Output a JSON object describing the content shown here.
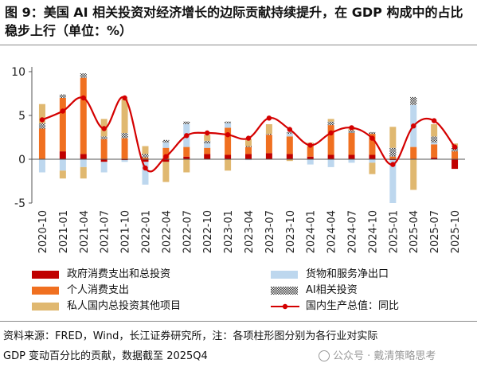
{
  "title": "图 9：美国 AI 相关投资对经济增长的边际贡献持续提升，在 GDP 构成中的占比稳步上行（单位：%）",
  "source_line1": "资料来源：FRED，Wind，长江证券研究所，注：各项柱形图分别为各行业对实际",
  "source_line2": "GDP 变动百分比的贡献，数据截至 2025Q4",
  "watermark": "公众号 · 戴清策略思考",
  "colors": {
    "gov": "#c00000",
    "personal": "#f07020",
    "goods": "#bdd7ee",
    "ai": "#333333",
    "private": "#e0b870",
    "gdp": "#d40000"
  },
  "chart_data": {
    "type": "bar",
    "stacked": true,
    "title": "",
    "xlabel": "",
    "ylabel": "",
    "ylim": [
      -5,
      10
    ],
    "yticks": [
      -5,
      0,
      5,
      10
    ],
    "grid": false,
    "legend_position": "bottom",
    "x_tick_labels": [
      "2020-10",
      "2021-01",
      "2021-04",
      "2021-07",
      "2021-10",
      "2022-01",
      "2022-04",
      "2022-07",
      "2022-10",
      "2023-01",
      "2023-04",
      "2023-07",
      "2023-10",
      "2024-01",
      "2024-04",
      "2024-07",
      "2024-10",
      "2025-01",
      "2025-04",
      "2025-07",
      "2025-10"
    ],
    "categories": [
      "2020Q4",
      "2021Q1",
      "2021Q2",
      "2021Q3",
      "2021Q4",
      "2022Q1",
      "2022Q2",
      "2022Q3",
      "2022Q4",
      "2023Q1",
      "2023Q2",
      "2023Q3",
      "2023Q4",
      "2024Q1",
      "2024Q2",
      "2024Q3",
      "2024Q4",
      "2025Q1",
      "2025Q2",
      "2025Q3",
      "2025Q4"
    ],
    "series": [
      {
        "name": "政府消费支出和总投资",
        "key": "gov",
        "values": [
          0.0,
          0.9,
          0.6,
          -0.3,
          -0.1,
          -0.3,
          -0.3,
          0.3,
          0.6,
          0.5,
          0.6,
          0.7,
          0.6,
          0.3,
          0.5,
          0.5,
          0.5,
          -0.1,
          0.0,
          0.2,
          -1.1
        ]
      },
      {
        "name": "个人消费支出",
        "key": "personal",
        "values": [
          3.5,
          6.1,
          8.7,
          2.3,
          2.4,
          0.2,
          1.3,
          1.1,
          0.7,
          3.1,
          0.8,
          2.1,
          2.0,
          1.2,
          3.4,
          2.5,
          2.4,
          0.3,
          1.4,
          1.5,
          0.9
        ]
      },
      {
        "name": "货物和服务净出口",
        "key": "goods",
        "values": [
          -1.5,
          -1.3,
          -0.9,
          -1.2,
          -0.2,
          -2.6,
          0.6,
          2.6,
          0.5,
          0.5,
          -0.1,
          0.0,
          0.3,
          -0.6,
          -0.9,
          -0.4,
          -0.4,
          -4.9,
          4.8,
          0.2,
          0.0
        ]
      },
      {
        "name": "AI相关投资",
        "key": "ai",
        "values": [
          0.6,
          0.4,
          0.5,
          0.3,
          0.6,
          0.4,
          0.3,
          0.3,
          0.3,
          0.2,
          0.1,
          0.1,
          0.2,
          0.3,
          0.4,
          0.3,
          0.2,
          1.0,
          0.9,
          0.7,
          0.5
        ]
      },
      {
        "name": "私人国内总投资其他项目",
        "key": "private",
        "values": [
          2.2,
          -0.9,
          -1.3,
          2.0,
          3.9,
          0.9,
          -2.3,
          -1.5,
          0.7,
          -1.3,
          0.8,
          1.1,
          -0.2,
          0.1,
          0.3,
          0.2,
          -1.3,
          2.4,
          -3.5,
          1.4,
          0.4
        ]
      },
      {
        "name": "国内生产总值：同比",
        "key": "gdp",
        "type": "line",
        "values": [
          4.5,
          5.5,
          7.0,
          3.5,
          7.0,
          -1.0,
          0.3,
          2.7,
          3.0,
          2.8,
          2.4,
          4.7,
          3.4,
          1.6,
          3.0,
          3.6,
          2.4,
          -0.6,
          3.8,
          4.4,
          1.4
        ]
      }
    ]
  }
}
